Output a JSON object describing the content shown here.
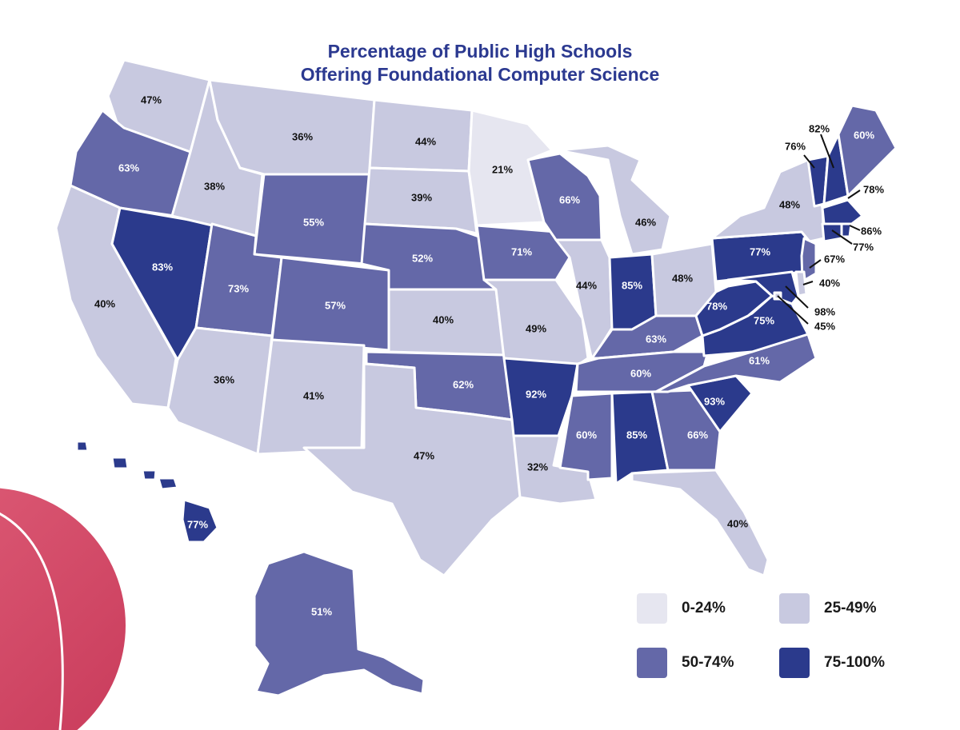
{
  "title": {
    "line1": "Percentage of Public High Schools",
    "line2": "Offering Foundational Computer Science"
  },
  "colors": {
    "0-24%": "#e6e6f0",
    "25-49%": "#c8c9e0",
    "50-74%": "#6468a8",
    "75-100%": "#2b3a8c",
    "title": "#2b3990",
    "accent": "#d84a6a"
  },
  "legend": [
    {
      "label": "0-24%",
      "bucket": "0-24%"
    },
    {
      "label": "25-49%",
      "bucket": "25-49%"
    },
    {
      "label": "50-74%",
      "bucket": "50-74%"
    },
    {
      "label": "75-100%",
      "bucket": "75-100%"
    }
  ],
  "states": [
    {
      "id": "WA",
      "value": 47,
      "label": "47%"
    },
    {
      "id": "OR",
      "value": 63,
      "label": "63%"
    },
    {
      "id": "CA",
      "value": 40,
      "label": "40%"
    },
    {
      "id": "NV",
      "value": 83,
      "label": "83%"
    },
    {
      "id": "ID",
      "value": 38,
      "label": "38%"
    },
    {
      "id": "MT",
      "value": 36,
      "label": "36%"
    },
    {
      "id": "WY",
      "value": 55,
      "label": "55%"
    },
    {
      "id": "UT",
      "value": 73,
      "label": "73%"
    },
    {
      "id": "AZ",
      "value": 36,
      "label": "36%"
    },
    {
      "id": "CO",
      "value": 57,
      "label": "57%"
    },
    {
      "id": "NM",
      "value": 41,
      "label": "41%"
    },
    {
      "id": "ND",
      "value": 44,
      "label": "44%"
    },
    {
      "id": "SD",
      "value": 39,
      "label": "39%"
    },
    {
      "id": "NE",
      "value": 52,
      "label": "52%"
    },
    {
      "id": "KS",
      "value": 40,
      "label": "40%"
    },
    {
      "id": "OK",
      "value": 62,
      "label": "62%"
    },
    {
      "id": "TX",
      "value": 47,
      "label": "47%"
    },
    {
      "id": "MN",
      "value": 21,
      "label": "21%"
    },
    {
      "id": "IA",
      "value": 71,
      "label": "71%"
    },
    {
      "id": "MO",
      "value": 49,
      "label": "49%"
    },
    {
      "id": "AR",
      "value": 92,
      "label": "92%"
    },
    {
      "id": "LA",
      "value": 32,
      "label": "32%"
    },
    {
      "id": "WI",
      "value": 66,
      "label": "66%"
    },
    {
      "id": "IL",
      "value": 44,
      "label": "44%"
    },
    {
      "id": "MI",
      "value": 46,
      "label": "46%"
    },
    {
      "id": "IN",
      "value": 85,
      "label": "85%"
    },
    {
      "id": "OH",
      "value": 48,
      "label": "48%"
    },
    {
      "id": "KY",
      "value": 63,
      "label": "63%"
    },
    {
      "id": "TN",
      "value": 60,
      "label": "60%"
    },
    {
      "id": "MS",
      "value": 60,
      "label": "60%"
    },
    {
      "id": "AL",
      "value": 85,
      "label": "85%"
    },
    {
      "id": "GA",
      "value": 66,
      "label": "66%"
    },
    {
      "id": "FL",
      "value": 40,
      "label": "40%"
    },
    {
      "id": "SC",
      "value": 93,
      "label": "93%"
    },
    {
      "id": "NC",
      "value": 61,
      "label": "61%"
    },
    {
      "id": "VA",
      "value": 75,
      "label": "75%"
    },
    {
      "id": "WV",
      "value": 78,
      "label": "78%"
    },
    {
      "id": "PA",
      "value": 77,
      "label": "77%"
    },
    {
      "id": "NY",
      "value": 48,
      "label": "48%"
    },
    {
      "id": "VT",
      "value": 76,
      "label": "76%"
    },
    {
      "id": "NH",
      "value": 82,
      "label": "82%"
    },
    {
      "id": "ME",
      "value": 60,
      "label": "60%"
    },
    {
      "id": "MA",
      "value": 78,
      "label": "78%"
    },
    {
      "id": "RI",
      "value": 86,
      "label": "86%"
    },
    {
      "id": "CT",
      "value": 77,
      "label": "77%"
    },
    {
      "id": "NJ",
      "value": 67,
      "label": "67%"
    },
    {
      "id": "DE",
      "value": 40,
      "label": "40%"
    },
    {
      "id": "MD",
      "value": 98,
      "label": "98%"
    },
    {
      "id": "DC",
      "value": 45,
      "label": "45%"
    },
    {
      "id": "AK",
      "value": 51,
      "label": "51%"
    },
    {
      "id": "HI",
      "value": 77,
      "label": "77%"
    }
  ]
}
